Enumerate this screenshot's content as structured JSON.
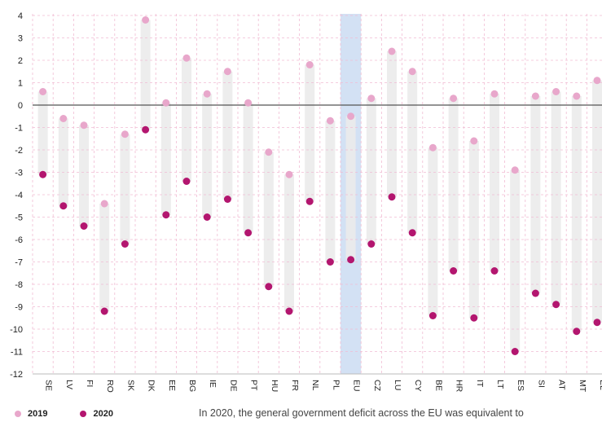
{
  "chart_data": {
    "type": "scatter",
    "categories": [
      "SE",
      "LV",
      "FI",
      "RO",
      "SK",
      "DK",
      "EE",
      "BG",
      "IE",
      "DE",
      "PT",
      "HU",
      "FR",
      "NL",
      "PL",
      "EU",
      "CZ",
      "LU",
      "CY",
      "BE",
      "HR",
      "IT",
      "LT",
      "ES",
      "SI",
      "AT",
      "MT",
      "EL"
    ],
    "highlight_category": "EU",
    "series": [
      {
        "name": "2019",
        "color": "#e8a7cb",
        "values": [
          0.6,
          -0.6,
          -0.9,
          -4.4,
          -1.3,
          3.8,
          0.1,
          2.1,
          0.5,
          1.5,
          0.1,
          -2.1,
          -3.1,
          1.8,
          -0.7,
          -0.5,
          0.3,
          2.4,
          1.5,
          -1.9,
          0.3,
          -1.6,
          0.5,
          -2.9,
          0.4,
          0.6,
          0.4,
          1.1
        ]
      },
      {
        "name": "2020",
        "color": "#b3166f",
        "values": [
          -3.1,
          -4.5,
          -5.4,
          -9.2,
          -6.2,
          -1.1,
          -4.9,
          -3.4,
          -5.0,
          -4.2,
          -5.7,
          -8.1,
          -9.2,
          -4.3,
          -7.0,
          -6.9,
          -6.2,
          -4.1,
          -5.7,
          -9.4,
          -7.4,
          -9.5,
          -7.4,
          -11.0,
          -8.4,
          -8.9,
          -10.1,
          -9.7
        ]
      }
    ],
    "yticks": [
      4,
      3,
      2,
      1,
      0,
      -1,
      -2,
      -3,
      -4,
      -5,
      -6,
      -7,
      -8,
      -9,
      -10,
      -11,
      -12
    ],
    "ylim": [
      -12,
      4
    ],
    "colors": {
      "range_bar": "#ebebeb",
      "highlight_band": "#d3e1f4",
      "grid": "#f1bcd3",
      "zero_line": "#555555"
    }
  },
  "legend": {
    "label_2019": "2019",
    "label_2020": "2020"
  },
  "caption": "In 2020, the general government deficit across the EU was equivalent to"
}
